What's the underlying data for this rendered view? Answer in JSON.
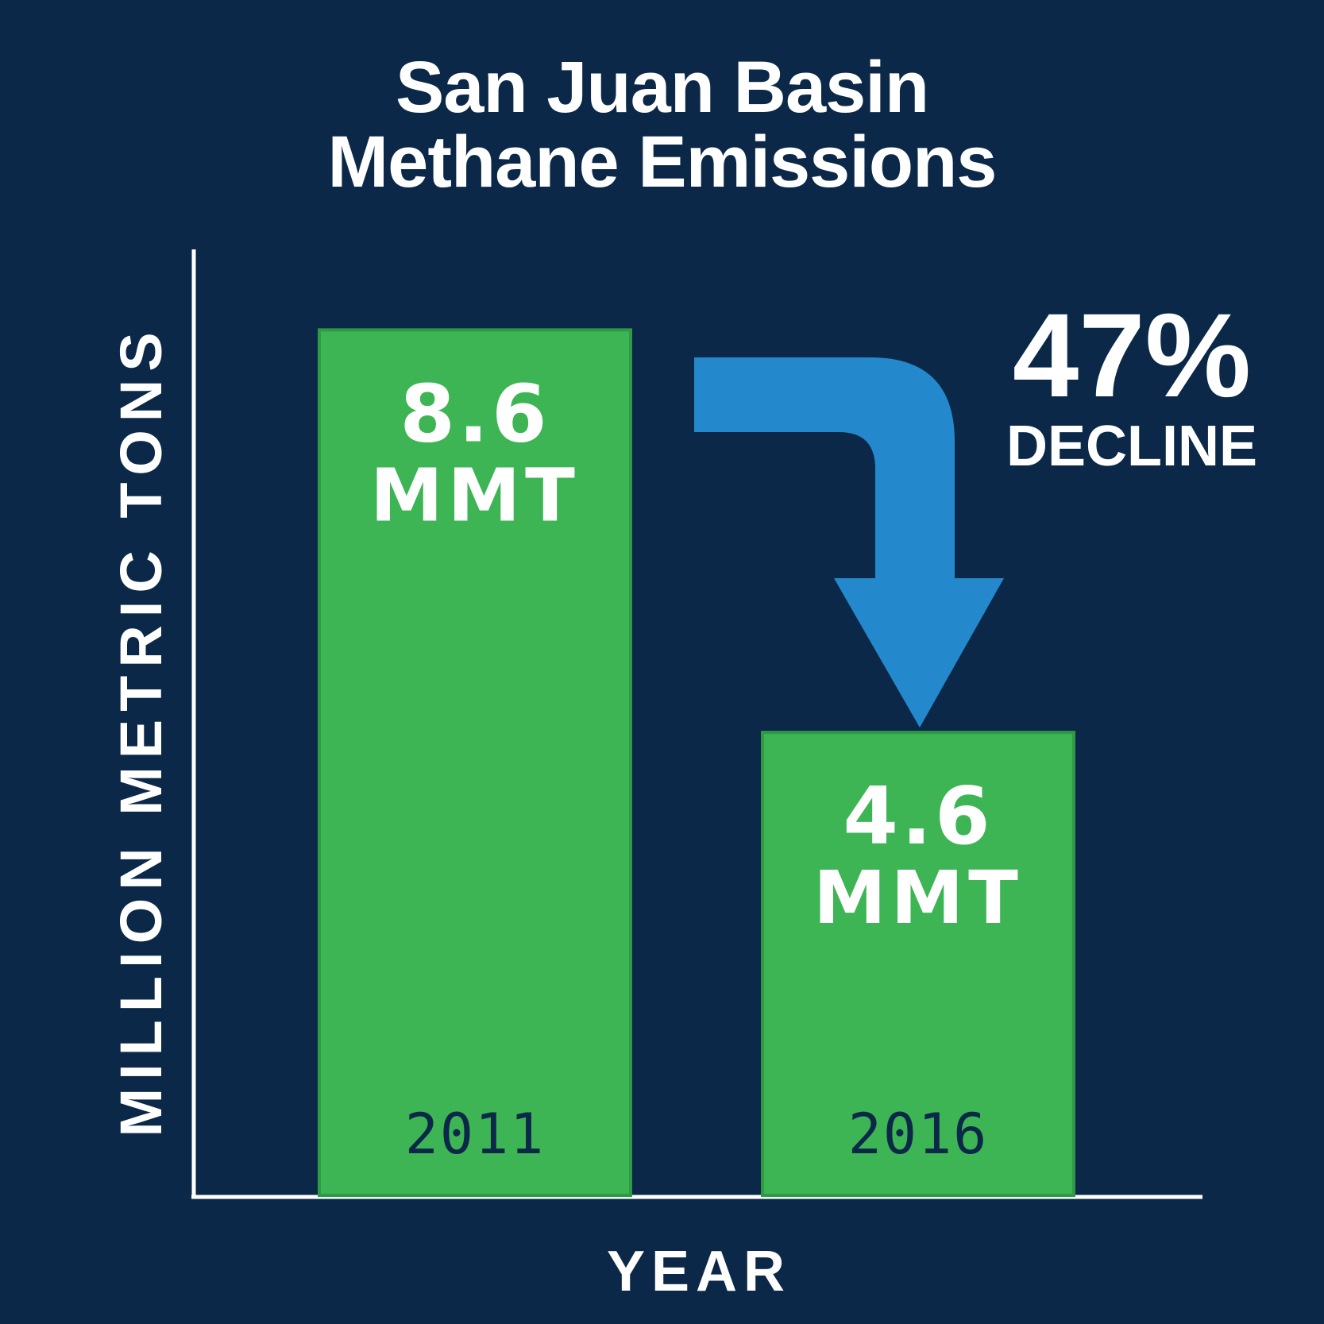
{
  "title": {
    "line1": "San Juan Basin",
    "line2": "Methane Emissions"
  },
  "annotation": {
    "percent": "47%",
    "label": "DECLINE"
  },
  "colors": {
    "background": "#0b2848",
    "bar": "#3db554",
    "bar_border": "#2f9a45",
    "arrow": "#2388cc",
    "text": "#ffffff",
    "year_text": "#0b2848"
  },
  "chart_data": {
    "type": "bar",
    "title": "San Juan Basin Methane Emissions",
    "xlabel": "YEAR",
    "ylabel": "MILLION METRIC TONS",
    "categories": [
      "2011",
      "2016"
    ],
    "values": [
      8.6,
      4.6
    ],
    "value_labels": [
      {
        "value": "8.6",
        "unit": "MMT"
      },
      {
        "value": "4.6",
        "unit": "MMT"
      }
    ],
    "ylim": [
      0,
      9.4
    ],
    "grid": false
  }
}
